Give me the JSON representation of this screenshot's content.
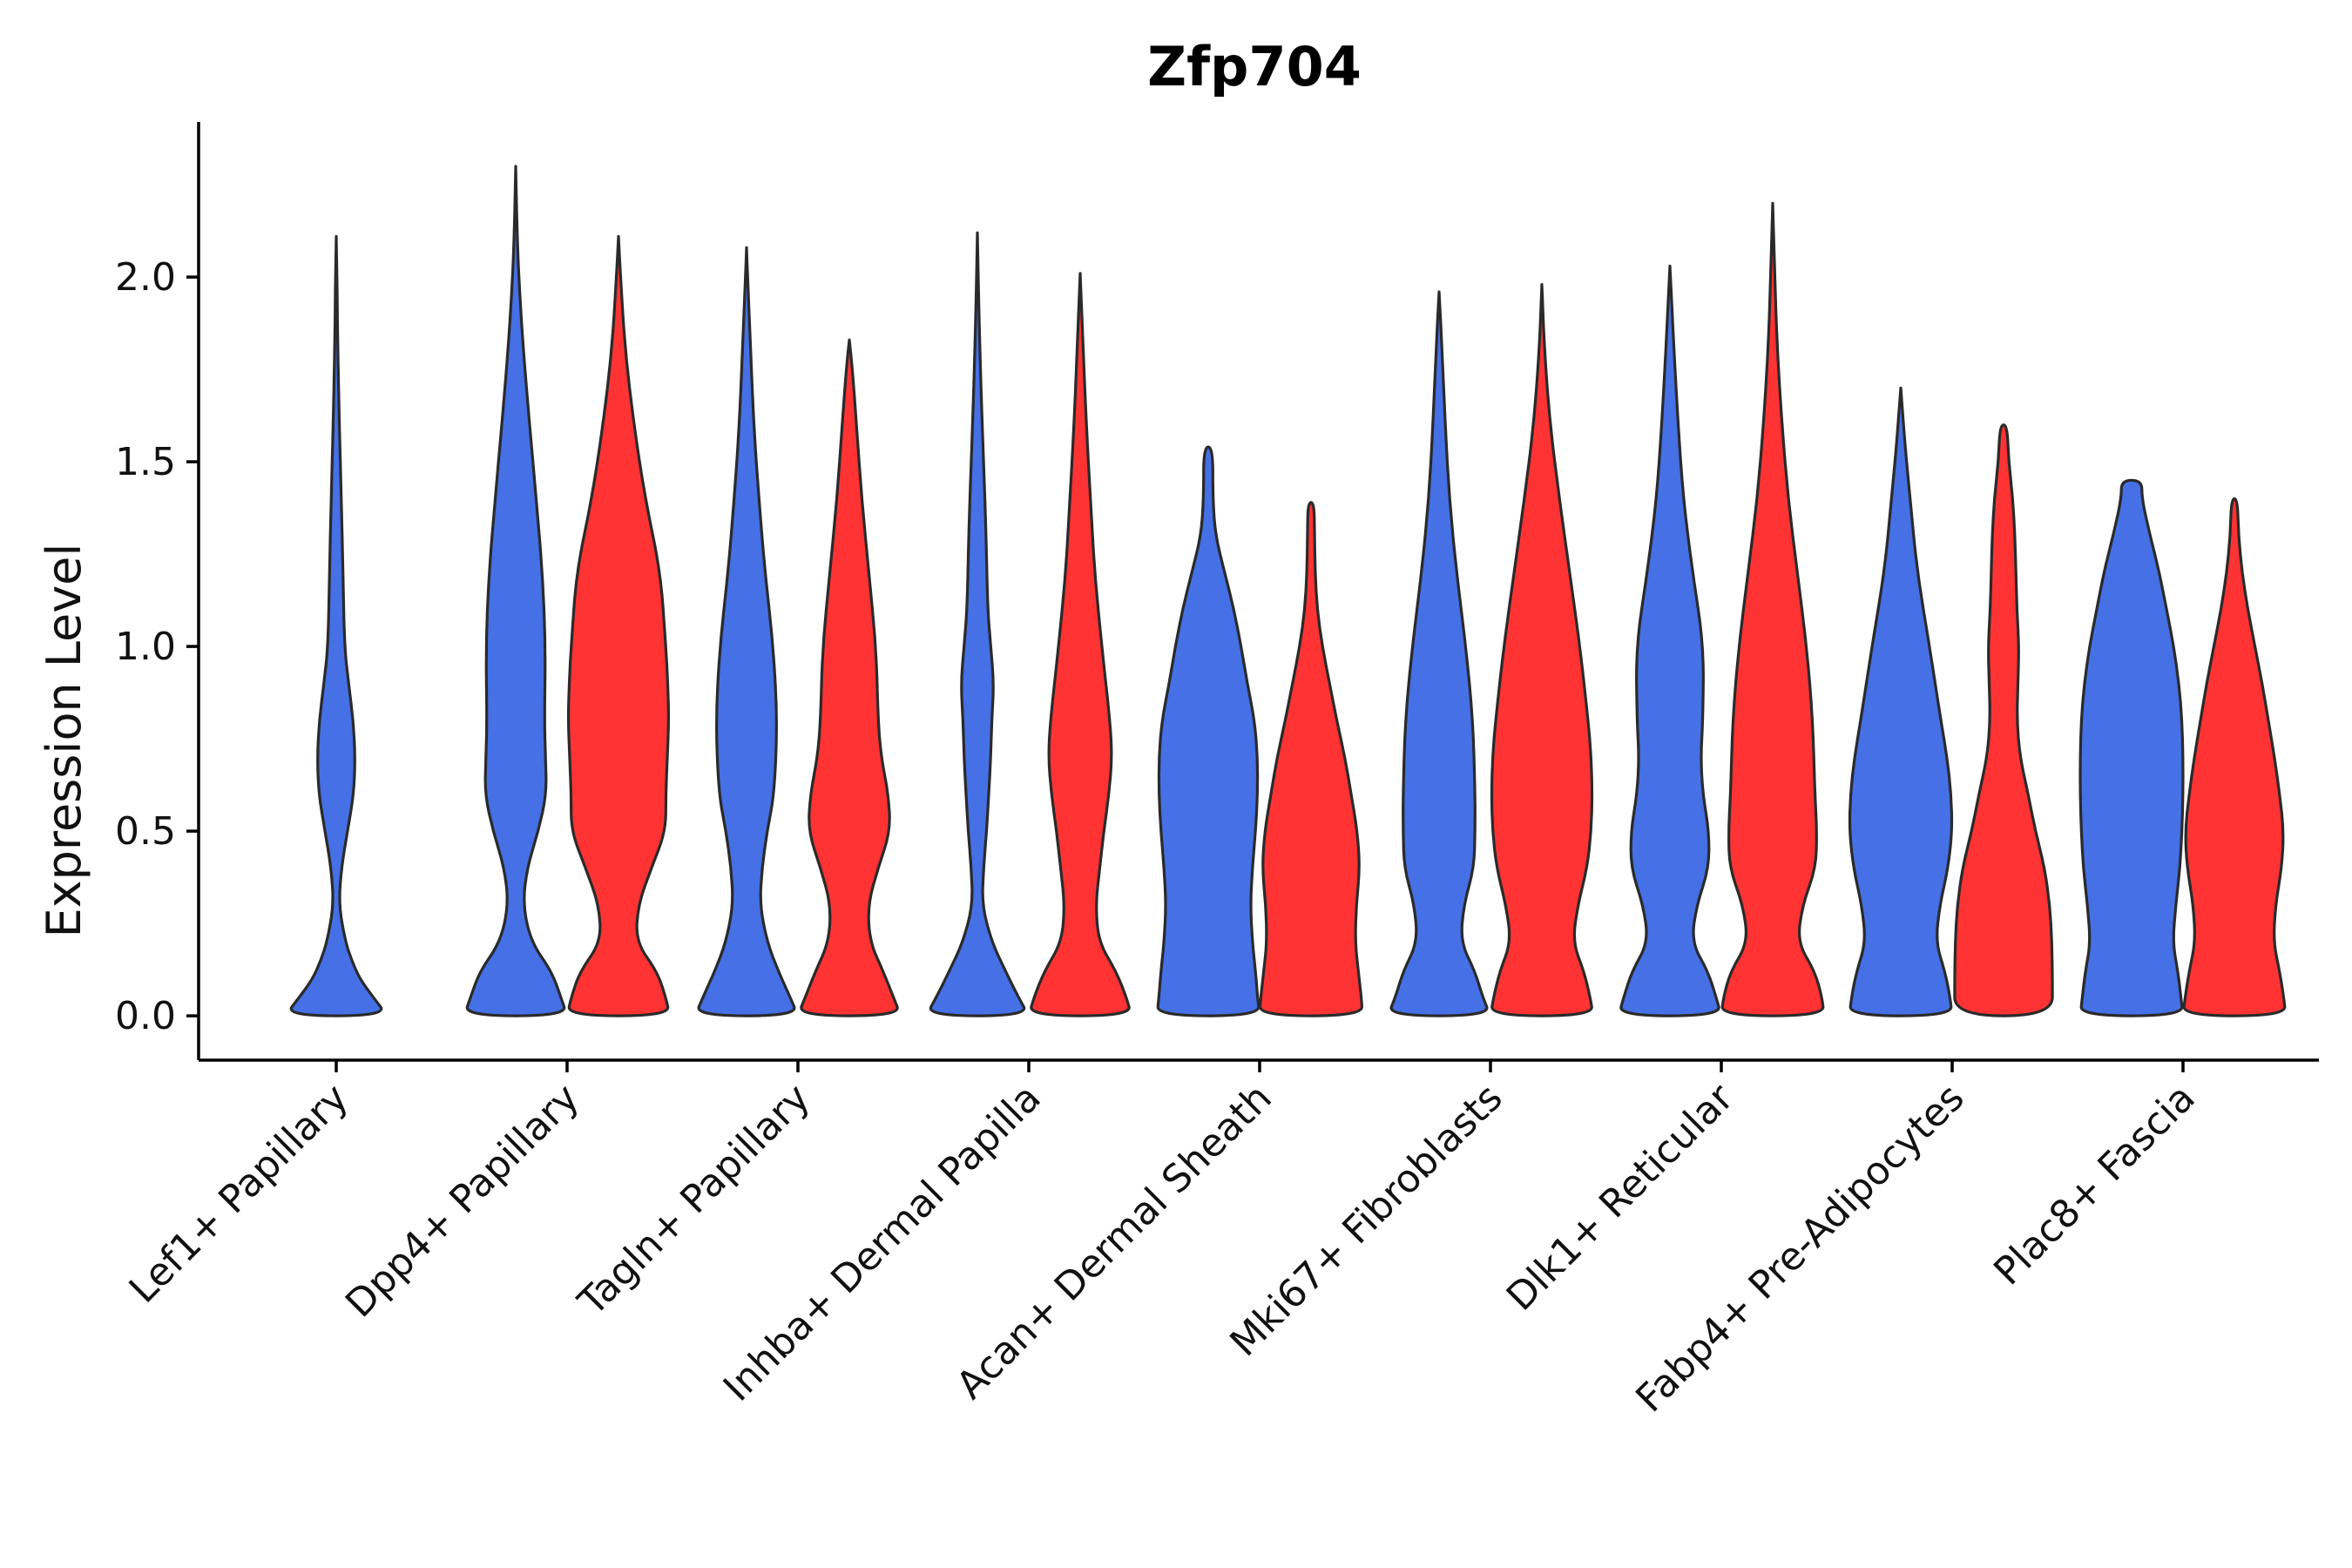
{
  "chart_data": {
    "type": "violin",
    "title": "Zfp704",
    "xlabel": "",
    "ylabel": "Expression Level",
    "ylim": [
      -0.12,
      2.42
    ],
    "yticks": [
      "0.0",
      "0.5",
      "1.0",
      "1.5",
      "2.0"
    ],
    "ytick_values": [
      0.0,
      0.5,
      1.0,
      1.5,
      2.0
    ],
    "grid": false,
    "legend": "none",
    "split_groups": [
      {
        "name": "group 1",
        "color": "#4570E6"
      },
      {
        "name": "group 2",
        "color": "#FF3333"
      }
    ],
    "categories": [
      "Lef1+ Papillary",
      "Dpp4+ Papillary",
      "Tagln+ Papillary",
      "Inhba+ Dermal Papilla",
      "Acan+ Dermal Sheath",
      "Mki67+ Fibroblasts",
      "Dlk1+ Reticular",
      "Fabp4+ Pre-Adipocytes",
      "Plac8+ Fascia"
    ],
    "violins": [
      {
        "category": "Lef1+ Papillary",
        "group": "group 1",
        "max": 2.11,
        "profile": [
          [
            0.0,
            1.0
          ],
          [
            0.05,
            0.72
          ],
          [
            0.1,
            0.46
          ],
          [
            0.15,
            0.3
          ],
          [
            0.2,
            0.18
          ],
          [
            0.3,
            0.05
          ],
          [
            0.4,
            0.1
          ],
          [
            0.5,
            0.22
          ],
          [
            0.6,
            0.34
          ],
          [
            0.7,
            0.37
          ],
          [
            0.8,
            0.33
          ],
          [
            0.9,
            0.24
          ],
          [
            1.0,
            0.16
          ],
          [
            1.2,
            0.13
          ],
          [
            1.4,
            0.1
          ],
          [
            1.6,
            0.06
          ],
          [
            1.8,
            0.03
          ],
          [
            2.0,
            0.015
          ],
          [
            2.11,
            0.0
          ]
        ]
      },
      {
        "category": "Dpp4+ Papillary",
        "group": "group 1",
        "max": 2.3,
        "profile": [
          [
            0.0,
            1.0
          ],
          [
            0.05,
            0.88
          ],
          [
            0.12,
            0.7
          ],
          [
            0.2,
            0.3
          ],
          [
            0.3,
            0.14
          ],
          [
            0.4,
            0.22
          ],
          [
            0.5,
            0.44
          ],
          [
            0.6,
            0.6
          ],
          [
            0.7,
            0.58
          ],
          [
            0.8,
            0.56
          ],
          [
            1.0,
            0.58
          ],
          [
            1.2,
            0.52
          ],
          [
            1.4,
            0.4
          ],
          [
            1.6,
            0.27
          ],
          [
            1.8,
            0.15
          ],
          [
            1.95,
            0.08
          ],
          [
            2.1,
            0.03
          ],
          [
            2.3,
            0.0
          ]
        ]
      },
      {
        "category": "Dpp4+ Papillary",
        "group": "group 2",
        "max": 2.11,
        "profile": [
          [
            0.0,
            1.0
          ],
          [
            0.05,
            0.92
          ],
          [
            0.12,
            0.75
          ],
          [
            0.2,
            0.34
          ],
          [
            0.3,
            0.38
          ],
          [
            0.4,
            0.64
          ],
          [
            0.5,
            0.92
          ],
          [
            0.6,
            0.92
          ],
          [
            0.7,
            0.95
          ],
          [
            0.8,
            0.98
          ],
          [
            0.9,
            0.96
          ],
          [
            1.0,
            0.92
          ],
          [
            1.2,
            0.82
          ],
          [
            1.4,
            0.52
          ],
          [
            1.6,
            0.3
          ],
          [
            1.8,
            0.13
          ],
          [
            2.0,
            0.04
          ],
          [
            2.11,
            0.0
          ]
        ]
      },
      {
        "category": "Tagln+ Papillary",
        "group": "group 1",
        "max": 2.08,
        "profile": [
          [
            0.0,
            1.0
          ],
          [
            0.05,
            0.85
          ],
          [
            0.12,
            0.62
          ],
          [
            0.2,
            0.4
          ],
          [
            0.3,
            0.26
          ],
          [
            0.4,
            0.3
          ],
          [
            0.5,
            0.4
          ],
          [
            0.6,
            0.54
          ],
          [
            0.8,
            0.6
          ],
          [
            1.0,
            0.52
          ],
          [
            1.2,
            0.36
          ],
          [
            1.4,
            0.24
          ],
          [
            1.6,
            0.14
          ],
          [
            1.8,
            0.08
          ],
          [
            2.0,
            0.02
          ],
          [
            2.08,
            0.0
          ]
        ]
      },
      {
        "category": "Tagln+ Papillary",
        "group": "group 2",
        "max": 1.83,
        "profile": [
          [
            0.0,
            1.0
          ],
          [
            0.05,
            0.86
          ],
          [
            0.12,
            0.66
          ],
          [
            0.2,
            0.4
          ],
          [
            0.3,
            0.36
          ],
          [
            0.4,
            0.56
          ],
          [
            0.5,
            0.8
          ],
          [
            0.6,
            0.76
          ],
          [
            0.7,
            0.62
          ],
          [
            0.8,
            0.56
          ],
          [
            1.0,
            0.52
          ],
          [
            1.2,
            0.38
          ],
          [
            1.4,
            0.24
          ],
          [
            1.6,
            0.14
          ],
          [
            1.75,
            0.06
          ],
          [
            1.83,
            0.0
          ]
        ]
      },
      {
        "category": "Inhba+ Dermal Papilla",
        "group": "group 1",
        "max": 2.12,
        "profile": [
          [
            0.0,
            1.0
          ],
          [
            0.05,
            0.8
          ],
          [
            0.12,
            0.55
          ],
          [
            0.2,
            0.28
          ],
          [
            0.3,
            0.09
          ],
          [
            0.4,
            0.12
          ],
          [
            0.5,
            0.18
          ],
          [
            0.6,
            0.22
          ],
          [
            0.7,
            0.26
          ],
          [
            0.8,
            0.28
          ],
          [
            0.9,
            0.32
          ],
          [
            1.0,
            0.26
          ],
          [
            1.1,
            0.2
          ],
          [
            1.3,
            0.17
          ],
          [
            1.5,
            0.12
          ],
          [
            1.7,
            0.07
          ],
          [
            1.9,
            0.03
          ],
          [
            2.12,
            0.0
          ]
        ]
      },
      {
        "category": "Inhba+ Dermal Papilla",
        "group": "group 2",
        "max": 2.01,
        "profile": [
          [
            0.0,
            1.0
          ],
          [
            0.05,
            0.9
          ],
          [
            0.12,
            0.7
          ],
          [
            0.2,
            0.36
          ],
          [
            0.3,
            0.3
          ],
          [
            0.4,
            0.38
          ],
          [
            0.5,
            0.46
          ],
          [
            0.6,
            0.56
          ],
          [
            0.7,
            0.62
          ],
          [
            0.8,
            0.58
          ],
          [
            1.0,
            0.42
          ],
          [
            1.2,
            0.28
          ],
          [
            1.4,
            0.2
          ],
          [
            1.6,
            0.12
          ],
          [
            1.8,
            0.06
          ],
          [
            2.01,
            0.0
          ]
        ]
      },
      {
        "category": "Acan+ Dermal Sheath",
        "group": "group 1",
        "max": 1.54,
        "profile": [
          [
            0.0,
            1.0
          ],
          [
            0.05,
            0.96
          ],
          [
            0.12,
            0.92
          ],
          [
            0.2,
            0.86
          ],
          [
            0.3,
            0.82
          ],
          [
            0.4,
            0.86
          ],
          [
            0.5,
            0.92
          ],
          [
            0.6,
            0.96
          ],
          [
            0.7,
            0.96
          ],
          [
            0.8,
            0.9
          ],
          [
            0.9,
            0.76
          ],
          [
            1.0,
            0.64
          ],
          [
            1.1,
            0.5
          ],
          [
            1.2,
            0.32
          ],
          [
            1.3,
            0.14
          ],
          [
            1.4,
            0.09
          ],
          [
            1.54,
            0.09
          ]
        ]
      },
      {
        "category": "Acan+ Dermal Sheath",
        "group": "group 2",
        "max": 1.39,
        "profile": [
          [
            0.0,
            1.0
          ],
          [
            0.05,
            0.98
          ],
          [
            0.12,
            0.92
          ],
          [
            0.2,
            0.86
          ],
          [
            0.3,
            0.88
          ],
          [
            0.4,
            0.95
          ],
          [
            0.5,
            0.9
          ],
          [
            0.6,
            0.78
          ],
          [
            0.7,
            0.66
          ],
          [
            0.8,
            0.5
          ],
          [
            0.9,
            0.36
          ],
          [
            1.0,
            0.22
          ],
          [
            1.1,
            0.12
          ],
          [
            1.2,
            0.08
          ],
          [
            1.3,
            0.07
          ],
          [
            1.39,
            0.06
          ]
        ]
      },
      {
        "category": "Mki67+ Fibroblasts",
        "group": "group 1",
        "max": 1.96,
        "profile": [
          [
            0.0,
            1.0
          ],
          [
            0.05,
            0.85
          ],
          [
            0.12,
            0.7
          ],
          [
            0.2,
            0.42
          ],
          [
            0.3,
            0.48
          ],
          [
            0.4,
            0.68
          ],
          [
            0.5,
            0.7
          ],
          [
            0.6,
            0.7
          ],
          [
            0.8,
            0.66
          ],
          [
            1.0,
            0.52
          ],
          [
            1.2,
            0.34
          ],
          [
            1.4,
            0.2
          ],
          [
            1.6,
            0.12
          ],
          [
            1.8,
            0.06
          ],
          [
            1.96,
            0.0
          ]
        ]
      },
      {
        "category": "Mki67+ Fibroblasts",
        "group": "group 2",
        "max": 1.98,
        "profile": [
          [
            0.0,
            1.0
          ],
          [
            0.05,
            0.94
          ],
          [
            0.12,
            0.82
          ],
          [
            0.2,
            0.6
          ],
          [
            0.3,
            0.7
          ],
          [
            0.4,
            0.88
          ],
          [
            0.5,
            0.96
          ],
          [
            0.6,
            0.98
          ],
          [
            0.7,
            0.96
          ],
          [
            0.8,
            0.9
          ],
          [
            1.0,
            0.74
          ],
          [
            1.2,
            0.54
          ],
          [
            1.4,
            0.34
          ],
          [
            1.6,
            0.16
          ],
          [
            1.8,
            0.05
          ],
          [
            1.98,
            0.0
          ]
        ]
      },
      {
        "category": "Dlk1+ Reticular",
        "group": "group 1",
        "max": 2.03,
        "profile": [
          [
            0.0,
            1.0
          ],
          [
            0.05,
            0.9
          ],
          [
            0.12,
            0.74
          ],
          [
            0.2,
            0.42
          ],
          [
            0.3,
            0.52
          ],
          [
            0.4,
            0.76
          ],
          [
            0.5,
            0.76
          ],
          [
            0.6,
            0.64
          ],
          [
            0.7,
            0.6
          ],
          [
            0.8,
            0.64
          ],
          [
            1.0,
            0.66
          ],
          [
            1.2,
            0.44
          ],
          [
            1.4,
            0.26
          ],
          [
            1.6,
            0.16
          ],
          [
            1.8,
            0.08
          ],
          [
            2.03,
            0.0
          ]
        ]
      },
      {
        "category": "Dlk1+ Reticular",
        "group": "group 2",
        "max": 2.2,
        "profile": [
          [
            0.0,
            1.0
          ],
          [
            0.05,
            0.96
          ],
          [
            0.12,
            0.82
          ],
          [
            0.2,
            0.48
          ],
          [
            0.3,
            0.58
          ],
          [
            0.4,
            0.84
          ],
          [
            0.5,
            0.86
          ],
          [
            0.6,
            0.82
          ],
          [
            0.8,
            0.78
          ],
          [
            1.0,
            0.66
          ],
          [
            1.2,
            0.48
          ],
          [
            1.4,
            0.3
          ],
          [
            1.6,
            0.18
          ],
          [
            1.8,
            0.09
          ],
          [
            2.0,
            0.04
          ],
          [
            2.2,
            0.0
          ]
        ]
      },
      {
        "category": "Fabp4+ Pre-Adipocytes",
        "group": "group 1",
        "max": 1.7,
        "profile": [
          [
            0.0,
            1.0
          ],
          [
            0.05,
            0.96
          ],
          [
            0.12,
            0.86
          ],
          [
            0.2,
            0.68
          ],
          [
            0.3,
            0.76
          ],
          [
            0.4,
            0.92
          ],
          [
            0.5,
            1.0
          ],
          [
            0.6,
            0.98
          ],
          [
            0.7,
            0.9
          ],
          [
            0.8,
            0.78
          ],
          [
            1.0,
            0.56
          ],
          [
            1.2,
            0.32
          ],
          [
            1.4,
            0.18
          ],
          [
            1.55,
            0.08
          ],
          [
            1.7,
            0.0
          ]
        ]
      },
      {
        "category": "Fabp4+ Pre-Adipocytes",
        "group": "group 2",
        "max": 1.6,
        "profile": [
          [
            0.0,
            0.95
          ],
          [
            0.1,
            0.95
          ],
          [
            0.2,
            0.94
          ],
          [
            0.3,
            0.9
          ],
          [
            0.4,
            0.8
          ],
          [
            0.5,
            0.62
          ],
          [
            0.6,
            0.48
          ],
          [
            0.7,
            0.32
          ],
          [
            0.8,
            0.26
          ],
          [
            0.9,
            0.28
          ],
          [
            1.0,
            0.3
          ],
          [
            1.1,
            0.26
          ],
          [
            1.2,
            0.24
          ],
          [
            1.3,
            0.22
          ],
          [
            1.4,
            0.18
          ],
          [
            1.5,
            0.1
          ],
          [
            1.6,
            0.07
          ]
        ]
      },
      {
        "category": "Plac8+ Fascia",
        "group": "group 1",
        "max": 1.45,
        "profile": [
          [
            0.0,
            1.0
          ],
          [
            0.05,
            0.96
          ],
          [
            0.12,
            0.9
          ],
          [
            0.2,
            0.8
          ],
          [
            0.3,
            0.86
          ],
          [
            0.4,
            0.94
          ],
          [
            0.5,
            0.98
          ],
          [
            0.6,
            1.0
          ],
          [
            0.7,
            1.0
          ],
          [
            0.8,
            0.98
          ],
          [
            0.9,
            0.92
          ],
          [
            1.0,
            0.82
          ],
          [
            1.1,
            0.68
          ],
          [
            1.2,
            0.54
          ],
          [
            1.3,
            0.36
          ],
          [
            1.4,
            0.2
          ],
          [
            1.45,
            0.2
          ]
        ]
      },
      {
        "category": "Plac8+ Fascia",
        "group": "group 2",
        "max": 1.4,
        "profile": [
          [
            0.0,
            1.0
          ],
          [
            0.05,
            0.96
          ],
          [
            0.12,
            0.88
          ],
          [
            0.2,
            0.76
          ],
          [
            0.3,
            0.8
          ],
          [
            0.4,
            0.92
          ],
          [
            0.5,
            0.96
          ],
          [
            0.6,
            0.88
          ],
          [
            0.7,
            0.78
          ],
          [
            0.8,
            0.66
          ],
          [
            0.9,
            0.54
          ],
          [
            1.0,
            0.4
          ],
          [
            1.1,
            0.26
          ],
          [
            1.2,
            0.15
          ],
          [
            1.3,
            0.08
          ],
          [
            1.4,
            0.06
          ]
        ]
      }
    ]
  }
}
